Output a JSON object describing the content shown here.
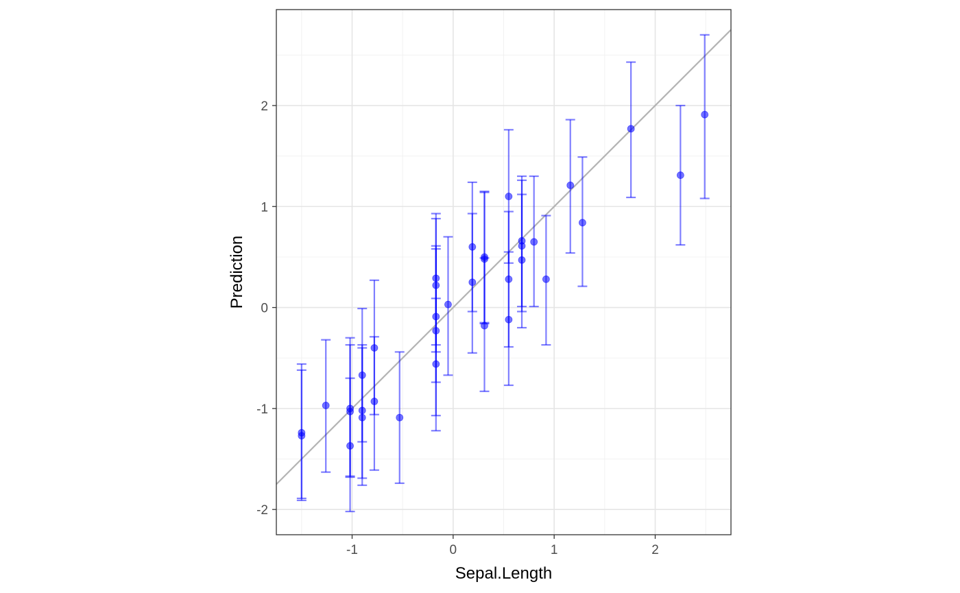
{
  "chart_data": {
    "type": "scatter",
    "title": "",
    "xlabel": "Sepal.Length",
    "ylabel": "Prediction",
    "xlim": [
      -1.75,
      2.75
    ],
    "ylim": [
      -2.25,
      2.95
    ],
    "x_ticks": [
      -1,
      0,
      1,
      2
    ],
    "x_tick_labels": [
      "-1",
      "0",
      "1",
      "2"
    ],
    "y_ticks": [
      -2,
      -1,
      0,
      1,
      2
    ],
    "y_tick_labels": [
      "-2",
      "-1",
      "0",
      "1",
      "2"
    ],
    "grid": true,
    "reference_line": {
      "slope": 1,
      "intercept": 0,
      "color": "#b3b3b3"
    },
    "colors": {
      "points": "#0000ff",
      "errorbars": "#0000ff",
      "reference_line": "#b3b3b3",
      "panel_border": "#333333",
      "grid": "#e5e5e5"
    },
    "series": [
      {
        "points": [
          {
            "x": -1.5,
            "y": -1.24,
            "lo": -1.89,
            "hi": -0.56
          },
          {
            "x": -1.5,
            "y": -1.27,
            "lo": -1.91,
            "hi": -0.62
          },
          {
            "x": -1.26,
            "y": -0.97,
            "lo": -1.63,
            "hi": -0.32
          },
          {
            "x": -1.02,
            "y": -1.0,
            "lo": -1.67,
            "hi": -0.3
          },
          {
            "x": -1.02,
            "y": -1.03,
            "lo": -1.68,
            "hi": -0.37
          },
          {
            "x": -1.02,
            "y": -1.37,
            "lo": -2.02,
            "hi": -0.7
          },
          {
            "x": -0.9,
            "y": -0.67,
            "lo": -1.33,
            "hi": -0.01
          },
          {
            "x": -0.9,
            "y": -1.02,
            "lo": -1.69,
            "hi": -0.37
          },
          {
            "x": -0.9,
            "y": -1.09,
            "lo": -1.76,
            "hi": -0.4
          },
          {
            "x": -0.78,
            "y": -0.4,
            "lo": -1.06,
            "hi": 0.27
          },
          {
            "x": -0.78,
            "y": -0.93,
            "lo": -1.61,
            "hi": -0.29
          },
          {
            "x": -0.53,
            "y": -1.09,
            "lo": -1.74,
            "hi": -0.44
          },
          {
            "x": -0.17,
            "y": 0.29,
            "lo": -0.37,
            "hi": 0.93
          },
          {
            "x": -0.17,
            "y": 0.22,
            "lo": -0.44,
            "hi": 0.88
          },
          {
            "x": -0.17,
            "y": -0.09,
            "lo": -0.74,
            "hi": 0.61
          },
          {
            "x": -0.17,
            "y": -0.23,
            "lo": -1.07,
            "hi": 0.58
          },
          {
            "x": -0.17,
            "y": -0.56,
            "lo": -1.22,
            "hi": 0.09
          },
          {
            "x": -0.05,
            "y": 0.03,
            "lo": -0.67,
            "hi": 0.7
          },
          {
            "x": 0.19,
            "y": 0.6,
            "lo": -0.04,
            "hi": 1.24
          },
          {
            "x": 0.19,
            "y": 0.25,
            "lo": -0.45,
            "hi": 0.93
          },
          {
            "x": 0.31,
            "y": 0.5,
            "lo": -0.15,
            "hi": 1.15
          },
          {
            "x": 0.31,
            "y": 0.48,
            "lo": -0.16,
            "hi": 1.14
          },
          {
            "x": 0.31,
            "y": -0.18,
            "lo": -0.83,
            "hi": 0.49
          },
          {
            "x": 0.55,
            "y": 1.1,
            "lo": 0.44,
            "hi": 1.76
          },
          {
            "x": 0.55,
            "y": 0.28,
            "lo": -0.39,
            "hi": 0.95
          },
          {
            "x": 0.55,
            "y": -0.12,
            "lo": -0.77,
            "hi": 0.55
          },
          {
            "x": 0.68,
            "y": 0.66,
            "lo": 0.01,
            "hi": 1.3
          },
          {
            "x": 0.68,
            "y": 0.61,
            "lo": -0.04,
            "hi": 1.26
          },
          {
            "x": 0.68,
            "y": 0.47,
            "lo": -0.2,
            "hi": 1.12
          },
          {
            "x": 0.8,
            "y": 0.65,
            "lo": 0.01,
            "hi": 1.3
          },
          {
            "x": 0.92,
            "y": 0.28,
            "lo": -0.37,
            "hi": 0.91
          },
          {
            "x": 1.16,
            "y": 1.21,
            "lo": 0.54,
            "hi": 1.86
          },
          {
            "x": 1.28,
            "y": 0.84,
            "lo": 0.21,
            "hi": 1.49
          },
          {
            "x": 1.76,
            "y": 1.77,
            "lo": 1.09,
            "hi": 2.43
          },
          {
            "x": 2.25,
            "y": 1.31,
            "lo": 0.62,
            "hi": 2.0
          },
          {
            "x": 2.49,
            "y": 1.91,
            "lo": 1.08,
            "hi": 2.7
          }
        ]
      }
    ]
  }
}
